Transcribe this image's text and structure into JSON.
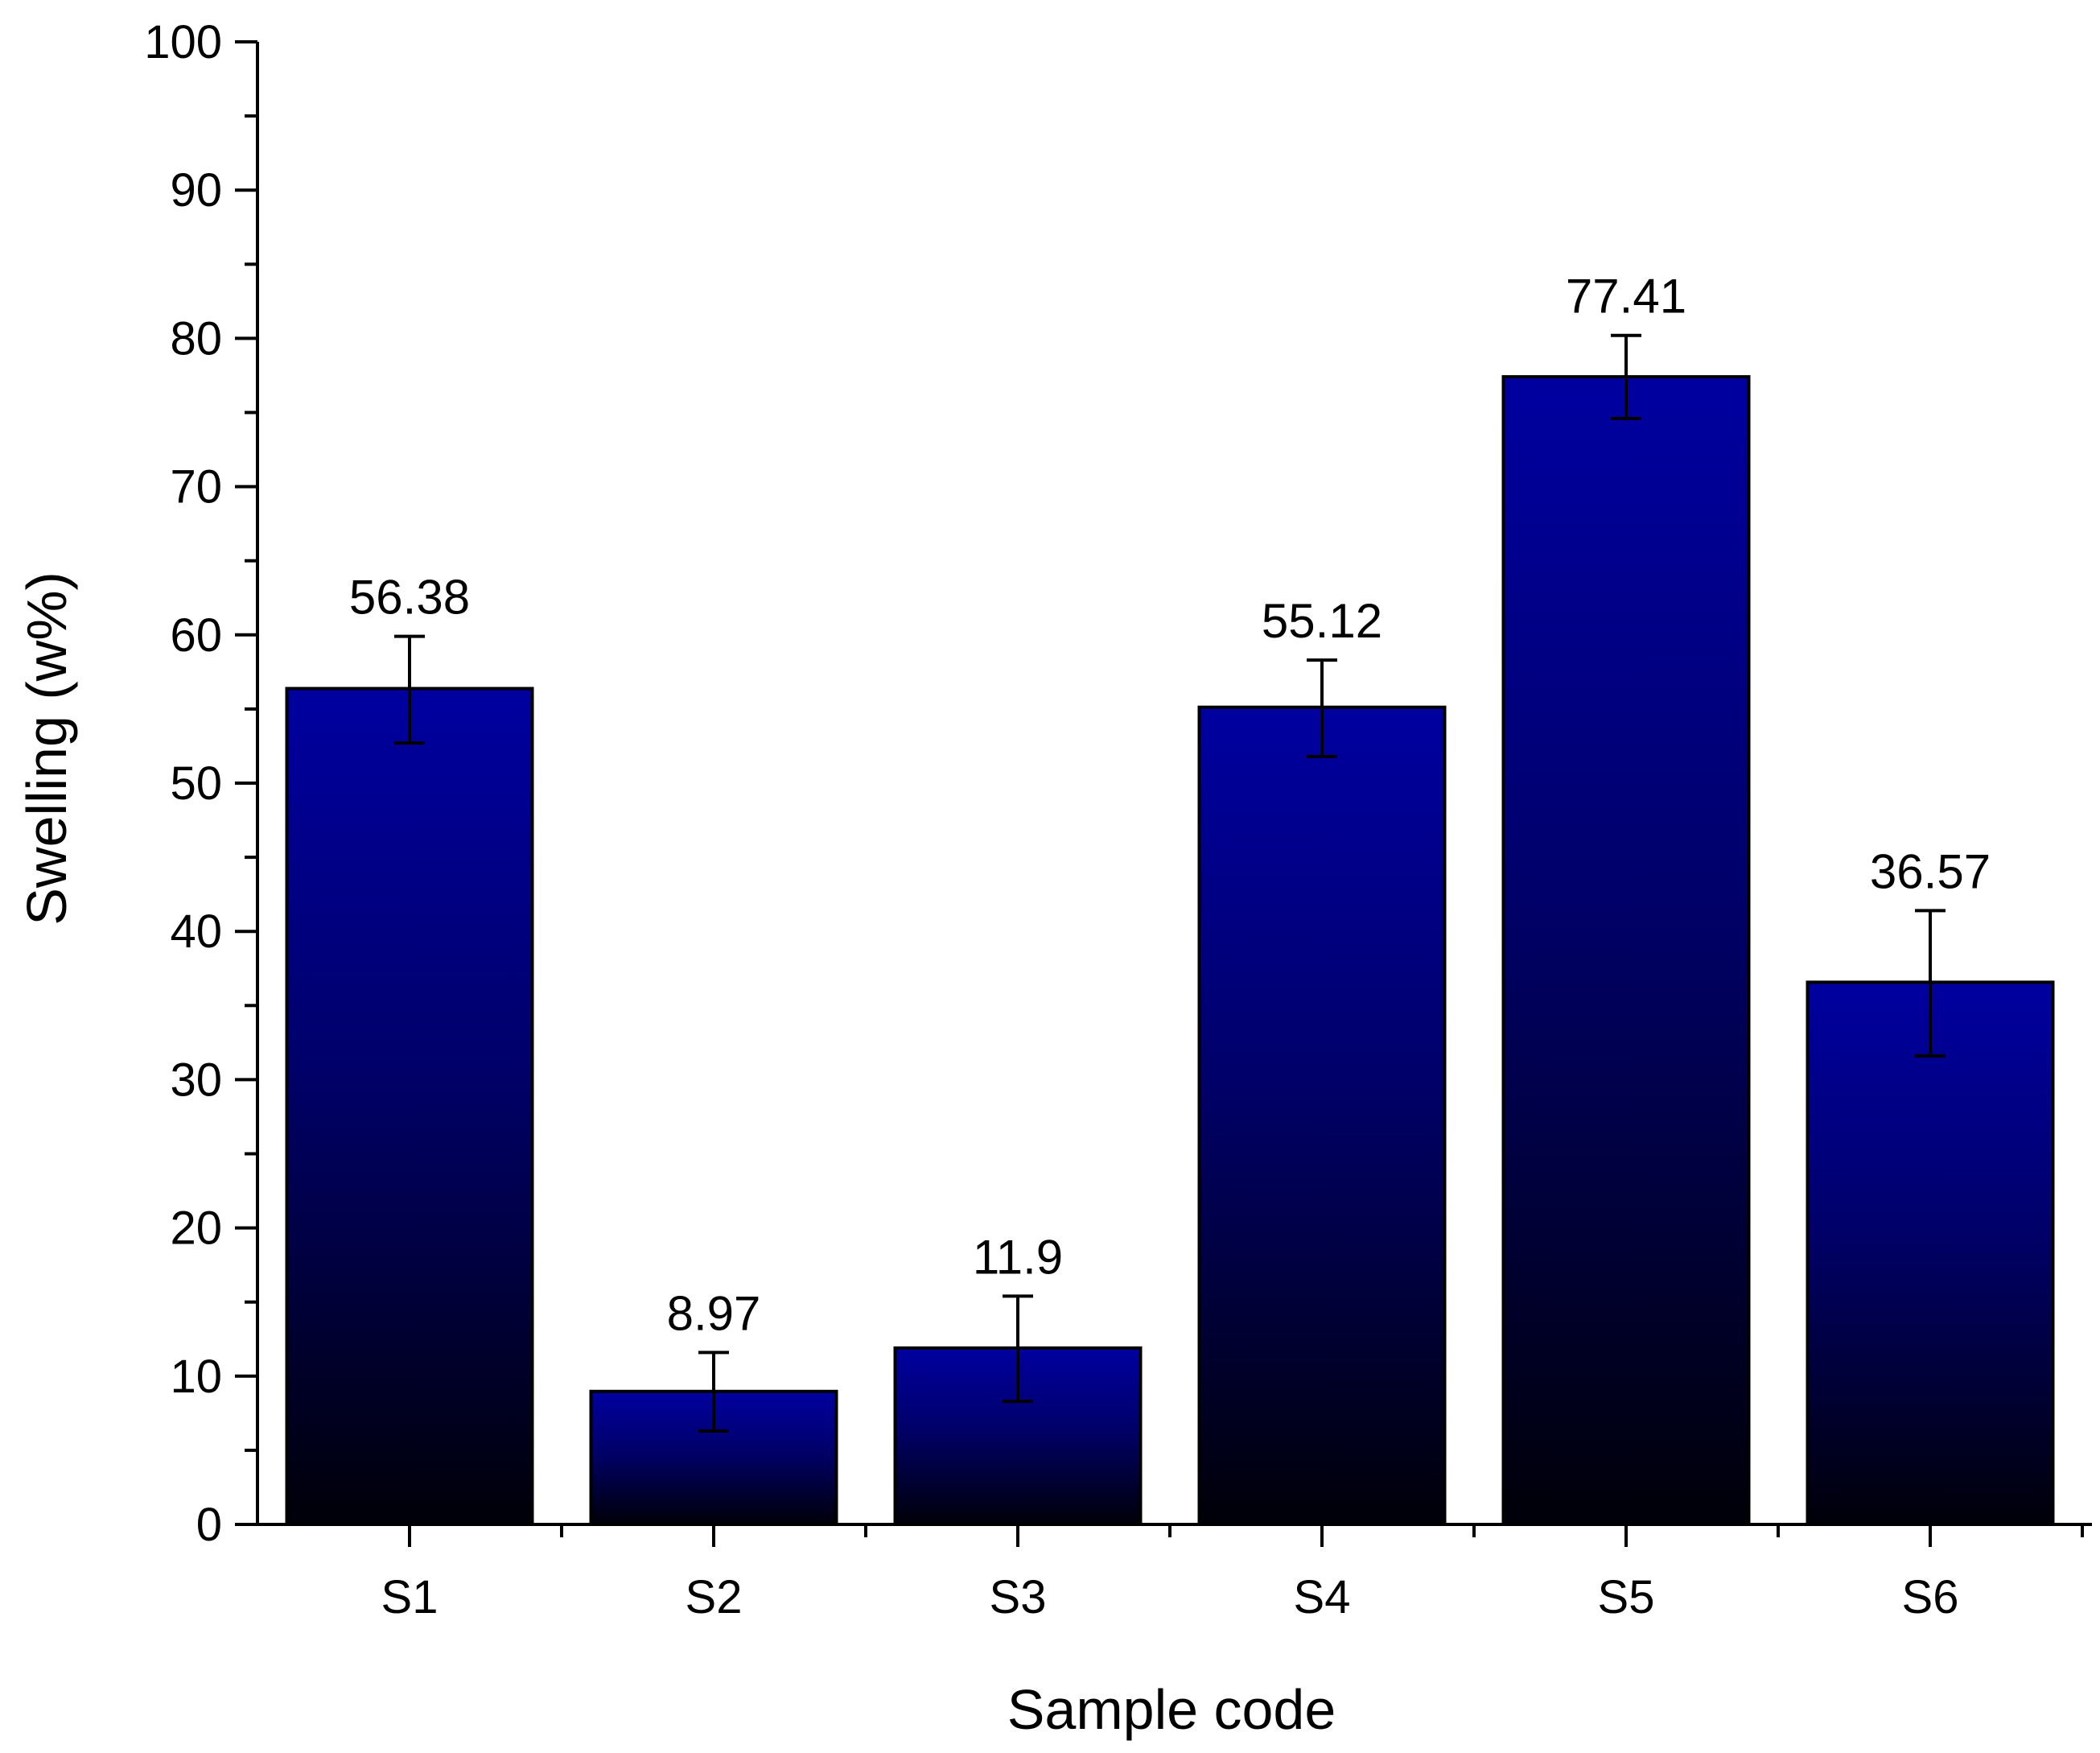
{
  "chart_data": {
    "type": "bar",
    "title": "",
    "xlabel": "Sample code",
    "ylabel": "Swelling (w%)",
    "categories": [
      "S1",
      "S2",
      "S3",
      "S4",
      "S5",
      "S6"
    ],
    "values": [
      56.38,
      8.97,
      11.9,
      55.12,
      77.41,
      36.57
    ],
    "data_labels": [
      "56.38",
      "8.97",
      "11.9",
      "55.12",
      "77.41",
      "36.57"
    ],
    "error_low": [
      52.7,
      6.3,
      8.3,
      51.8,
      74.6,
      31.6
    ],
    "error_high": [
      59.9,
      11.6,
      15.4,
      58.3,
      80.2,
      41.4
    ],
    "ylim": [
      0,
      100
    ],
    "yticks": [
      0,
      10,
      20,
      30,
      40,
      50,
      60,
      70,
      80,
      90,
      100
    ],
    "ytick_labels": [
      "0",
      "10",
      "20",
      "30",
      "40",
      "50",
      "60",
      "70",
      "80",
      "90",
      "100"
    ],
    "grid": false,
    "bar_colors": {
      "top": "#0000a0",
      "bottom": "#000008",
      "edge": "#000000"
    }
  }
}
